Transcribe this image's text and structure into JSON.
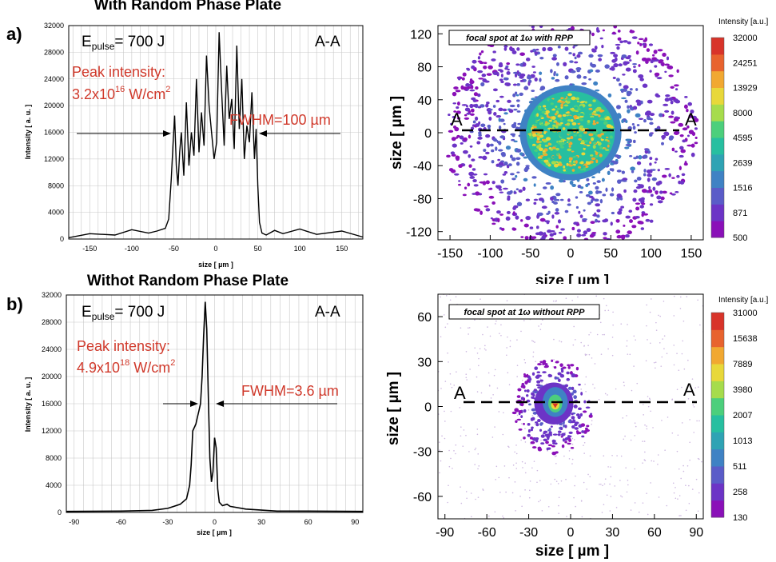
{
  "panels": {
    "a": {
      "label": "a)",
      "title": "With Random Phase Plate",
      "lineout": {
        "energy_prefix": "E",
        "energy_sub": "pulse",
        "energy_value": "= 700 J",
        "section": "A-A",
        "peak_label": "Peak intensity:",
        "peak_base": "3.2x10",
        "peak_exp": "16",
        "peak_unit": " W/cm",
        "peak_unit_exp": "2",
        "fwhm_label": "FWHM=100 µm",
        "xlabel": "size [ µm ]",
        "ylabel": "Intensity [ a. u. ]",
        "xticks": [
          "-150",
          "-100",
          "-50",
          "0",
          "50",
          "100",
          "150"
        ],
        "yticks": [
          "0",
          "4000",
          "8000",
          "12000",
          "16000",
          "20000",
          "24000",
          "28000",
          "32000"
        ]
      },
      "map": {
        "box_label": "focal spot at 1ω with RPP",
        "section_left": "A",
        "section_right": "A",
        "xlabel": "size [ µm ]",
        "ylabel": "size [ µm ]",
        "xticks": [
          "-150",
          "-100",
          "-50",
          "0",
          "50",
          "100",
          "150"
        ],
        "yticks": [
          "120",
          "80",
          "40",
          "0",
          "-40",
          "-80",
          "-120"
        ],
        "colorbar_title": "Intensity [a.u.]",
        "colorbar_ticks": [
          "32000",
          "24251",
          "13929",
          "8000",
          "4595",
          "2639",
          "1516",
          "871",
          "500"
        ]
      }
    },
    "b": {
      "label": "b)",
      "title": "Withot Random Phase Plate",
      "lineout": {
        "energy_prefix": "E",
        "energy_sub": "pulse",
        "energy_value": "= 700 J",
        "section": "A-A",
        "peak_label": "Peak intensity:",
        "peak_base": "4.9x10",
        "peak_exp": "18",
        "peak_unit": " W/cm",
        "peak_unit_exp": "2",
        "fwhm_label": "FWHM=3.6 µm",
        "xlabel": "size [ µm ]",
        "ylabel": "Intensity [ a. u. ]",
        "xticks": [
          "-90",
          "-60",
          "-30",
          "0",
          "30",
          "60",
          "90"
        ],
        "yticks": [
          "0",
          "4000",
          "8000",
          "12000",
          "16000",
          "20000",
          "24000",
          "28000",
          "32000"
        ]
      },
      "map": {
        "box_label": "focal spot at 1ω without RPP",
        "section_left": "A",
        "section_right": "A",
        "xlabel": "size [ µm ]",
        "ylabel": "size [ µm ]",
        "xticks": [
          "-90",
          "-60",
          "-30",
          "0",
          "30",
          "60",
          "90"
        ],
        "yticks": [
          "60",
          "30",
          "0",
          "-30",
          "-60"
        ],
        "colorbar_title": "Intensity [a.u.]",
        "colorbar_ticks": [
          "31000",
          "15638",
          "7889",
          "3980",
          "2007",
          "1013",
          "511",
          "258",
          "130"
        ]
      }
    }
  },
  "colors": {
    "annotation": "#d0392b",
    "line": "#000000",
    "grid": "#bfbfbf",
    "colormap": [
      "#8a10b8",
      "#6c34c6",
      "#5a5cc8",
      "#3f82c4",
      "#2fa3b4",
      "#27bfa0",
      "#4ccf7c",
      "#a6dc4c",
      "#e8d83a",
      "#f1a831",
      "#e8632e",
      "#d8342a"
    ]
  },
  "chart_data": [
    {
      "type": "line",
      "id": "a-lineout",
      "title": "With Random Phase Plate",
      "xlabel": "size [ µm ]",
      "ylabel": "Intensity [ a. u. ]",
      "xlim": [
        -175,
        175
      ],
      "ylim": [
        0,
        32000
      ],
      "series": [
        {
          "name": "A-A lineout",
          "x": [
            -175,
            -150,
            -120,
            -100,
            -80,
            -70,
            -60,
            -56,
            -53,
            -51,
            -49,
            -47,
            -45,
            -43,
            -41,
            -38,
            -35,
            -32,
            -29,
            -26,
            -23,
            -20,
            -17,
            -14,
            -11,
            -8,
            -5,
            -2,
            1,
            4,
            7,
            10,
            13,
            16,
            19,
            22,
            25,
            28,
            31,
            34,
            37,
            40,
            43,
            46,
            48,
            50,
            52,
            55,
            60,
            70,
            80,
            100,
            120,
            150,
            175
          ],
          "y": [
            200,
            800,
            600,
            1400,
            900,
            1200,
            1600,
            3000,
            9000,
            14000,
            18500,
            11000,
            8000,
            13000,
            16000,
            9500,
            20500,
            11000,
            16000,
            12500,
            24000,
            13000,
            19000,
            14000,
            27500,
            20000,
            16000,
            12000,
            14500,
            31000,
            22000,
            14000,
            26000,
            18000,
            21000,
            13500,
            29000,
            16500,
            24000,
            12000,
            17000,
            14500,
            22000,
            12000,
            16500,
            8000,
            2500,
            900,
            600,
            1300,
            800,
            1500,
            700,
            1200,
            300
          ]
        }
      ]
    },
    {
      "type": "heatmap",
      "id": "a-map",
      "title": "focal spot at 1ω with RPP",
      "xlabel": "size [ µm ]",
      "ylabel": "size [ µm ]",
      "xlim": [
        -165,
        165
      ],
      "ylim": [
        -130,
        130
      ],
      "colorbar": [
        32000,
        24251,
        13929,
        8000,
        4595,
        2639,
        1516,
        871,
        500
      ],
      "core_radius_um": 55,
      "halo_radius_um": 150
    },
    {
      "type": "line",
      "id": "b-lineout",
      "title": "Withot Random Phase Plate",
      "xlabel": "size [ µm ]",
      "ylabel": "Intensity [ a. u. ]",
      "xlim": [
        -95,
        95
      ],
      "ylim": [
        0,
        32000
      ],
      "series": [
        {
          "name": "A-A lineout",
          "x": [
            -95,
            -60,
            -40,
            -30,
            -22,
            -18,
            -16,
            -15,
            -14,
            -12,
            -11,
            -10,
            -9,
            -8,
            -7,
            -6,
            -5,
            -4,
            -3,
            -2,
            -1,
            0,
            1,
            2,
            3,
            5,
            8,
            10,
            20,
            40,
            60,
            95
          ],
          "y": [
            150,
            200,
            300,
            600,
            1200,
            2000,
            4000,
            7000,
            12000,
            13000,
            14000,
            15000,
            16000,
            20000,
            26000,
            31000,
            27000,
            17000,
            8000,
            4500,
            6000,
            11000,
            9500,
            3500,
            1500,
            1000,
            1200,
            900,
            500,
            200,
            200,
            150
          ]
        }
      ]
    },
    {
      "type": "heatmap",
      "id": "b-map",
      "title": "focal spot at 1ω without RPP",
      "xlabel": "size [ µm ]",
      "ylabel": "size [ µm ]",
      "xlim": [
        -95,
        95
      ],
      "ylim": [
        -75,
        75
      ],
      "colorbar": [
        31000,
        15638,
        7889,
        3980,
        2007,
        1013,
        511,
        258,
        130
      ],
      "core_center_um": [
        -12,
        0
      ],
      "core_radius_um": 22
    }
  ]
}
